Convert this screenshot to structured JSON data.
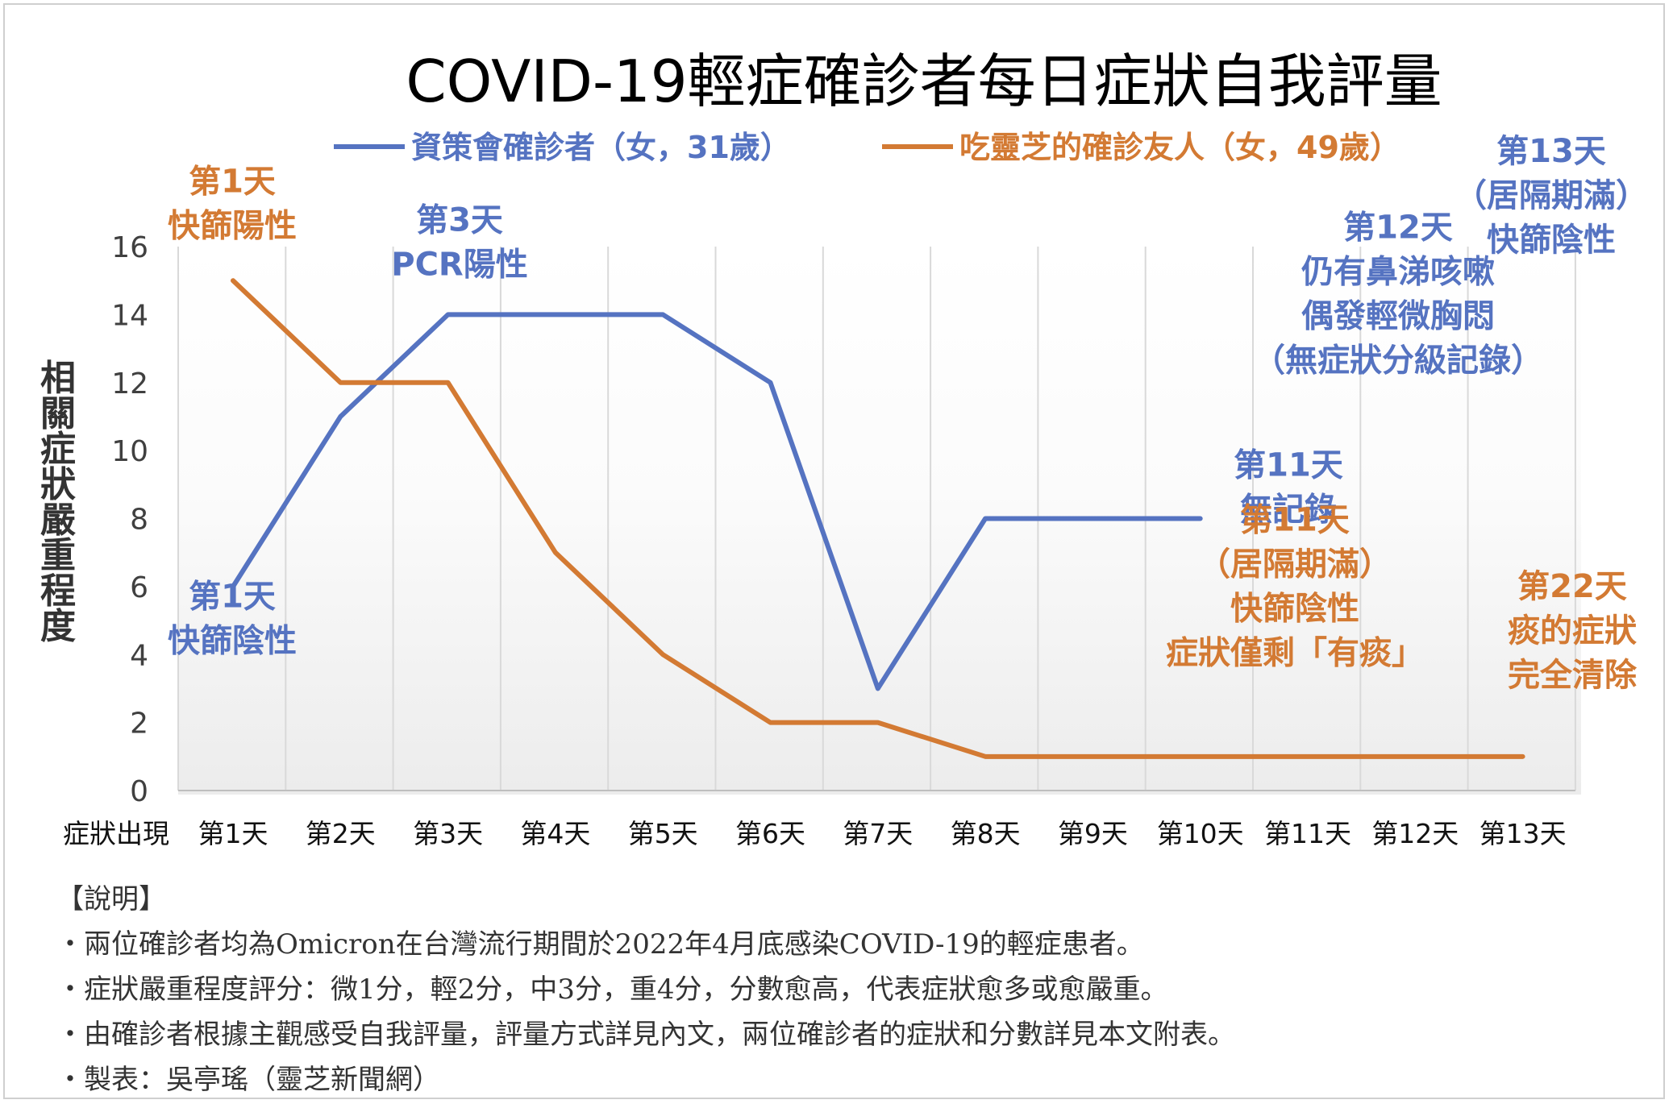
{
  "chart_data": {
    "type": "line",
    "title": "COVID-19輕症確診者每日症狀自我評量",
    "ylabel": "相關症狀嚴重程度",
    "xlabel": "症狀出現",
    "ylim": [
      0,
      16
    ],
    "yticks": [
      0,
      2,
      4,
      6,
      8,
      10,
      12,
      14,
      16
    ],
    "categories": [
      "第1天",
      "第2天",
      "第3天",
      "第4天",
      "第5天",
      "第6天",
      "第7天",
      "第8天",
      "第9天",
      "第10天",
      "第11天",
      "第12天",
      "第13天"
    ],
    "grid": "vertical",
    "legend_position": "top",
    "series": [
      {
        "name": "資策會確診者（女，31歲）",
        "color": "#5573c1",
        "values": [
          6,
          11,
          14,
          14,
          14,
          12,
          3,
          8,
          8,
          8,
          null,
          null,
          null
        ]
      },
      {
        "name": "吃靈芝的確診友人（女，49歲）",
        "color": "#d37a33",
        "values": [
          15,
          12,
          12,
          7,
          4,
          2,
          2,
          1,
          1,
          1,
          1,
          1,
          1
        ]
      }
    ],
    "annotations": [
      {
        "series": 1,
        "lines": [
          "第1天",
          "快篩陽性"
        ]
      },
      {
        "series": 0,
        "lines": [
          "第3天",
          "PCR陽性"
        ]
      },
      {
        "series": 0,
        "lines": [
          "第13天",
          "（居隔期滿）",
          "快篩陰性"
        ]
      },
      {
        "series": 0,
        "lines": [
          "第12天",
          "仍有鼻涕咳嗽",
          "偶發輕微胸悶",
          "（無症狀分級記錄）"
        ]
      },
      {
        "series": 0,
        "lines": [
          "第11天",
          "無記錄"
        ]
      },
      {
        "series": 0,
        "lines": [
          "第1天",
          "快篩陰性"
        ]
      },
      {
        "series": 1,
        "lines": [
          "第11天",
          "（居隔期滿）",
          "快篩陰性",
          "症狀僅剩「有痰」"
        ]
      },
      {
        "series": 1,
        "lines": [
          "第22天",
          "痰的症狀",
          "完全清除"
        ]
      }
    ]
  },
  "notes": {
    "heading": "【說明】",
    "items": [
      "・兩位確診者均為Omicron在台灣流行期間於2022年4月底感染COVID-19的輕症患者。",
      "・症狀嚴重程度評分：微1分，輕2分，中3分，重4分，分數愈高，代表症狀愈多或愈嚴重。",
      "・由確診者根據主觀感受自我評量，評量方式詳見內文，兩位確診者的症狀和分數詳見本文附表。",
      "・製表：吳亭瑤（靈芝新聞網）"
    ]
  }
}
